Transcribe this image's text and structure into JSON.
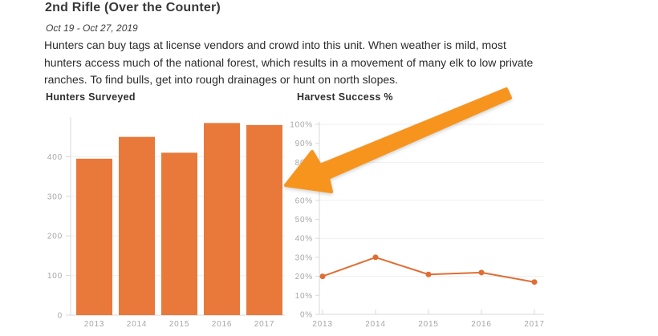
{
  "page": {
    "title": "2nd Rifle (Over the Counter)",
    "date_range": "Oct 19 - Oct 27, 2019",
    "description_lines": [
      "Hunters can buy tags at license vendors and crowd into this unit. When weather is mild, most",
      "hunters access much of the national forest, which results in a movement of many elk to low private",
      "ranches. To find bulls, get into rough drainages or hunt on north slopes."
    ]
  },
  "colors": {
    "bar": "#E8793A",
    "line": "#E06E34",
    "arrow": "#F7941E",
    "axis": "#D9D9D9",
    "grid": "#EFEFEF",
    "tick_label": "#A6A6A6"
  },
  "annotation": {
    "type": "arrow",
    "description": "large orange arrow pointing down-left at the Hunters Surveyed bar chart"
  },
  "chart_data": [
    {
      "type": "bar",
      "title": "Hunters Surveyed",
      "categories": [
        "2013",
        "2014",
        "2015",
        "2016",
        "2017"
      ],
      "values": [
        395,
        450,
        410,
        485,
        480
      ],
      "ylim": [
        0,
        500
      ],
      "yticks": [
        0,
        100,
        200,
        300,
        400
      ],
      "ytick_suffix": "",
      "grid": true,
      "legend": "none",
      "xlabel": "",
      "ylabel": ""
    },
    {
      "type": "line",
      "title": "Harvest Success %",
      "categories": [
        "2013",
        "2014",
        "2015",
        "2016",
        "2017"
      ],
      "values": [
        20,
        30,
        21,
        22,
        17
      ],
      "ylim": [
        0,
        100
      ],
      "yticks": [
        0,
        10,
        20,
        30,
        40,
        50,
        60,
        70,
        80,
        90,
        100
      ],
      "ytick_suffix": "%",
      "grid_every": 20,
      "legend": "none",
      "xlabel": "",
      "ylabel": ""
    }
  ]
}
